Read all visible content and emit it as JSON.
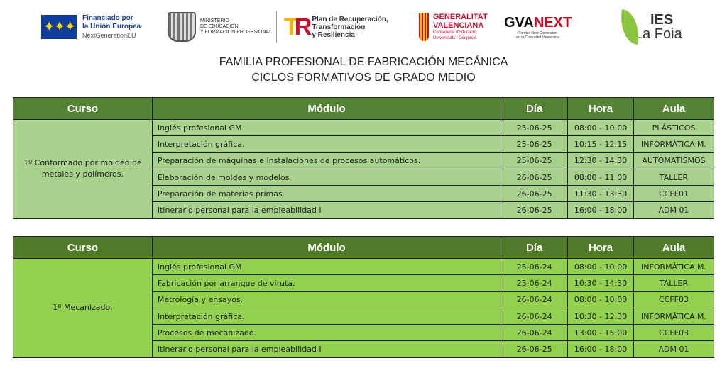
{
  "logos": {
    "eu": {
      "line1": "Financiado por",
      "line2": "la Unión Europea",
      "line3": "NextGenerationEU"
    },
    "ministerio": {
      "line1": "MINISTERIO",
      "line2": "DE EDUCACIÓN",
      "line3": "Y FORMACIÓN PROFESIONAL"
    },
    "plan": {
      "line1": "Plan de Recuperación,",
      "line2": "Transformación",
      "line3": "y Resiliencia"
    },
    "generalitat": {
      "line1": "GENERALITAT",
      "line2": "VALENCIANA",
      "line3": "Conselleria d'Educació,",
      "line4": "Universitats i Ocupació"
    },
    "gvanext": {
      "name_a": "GVA",
      "name_b": "NEXT",
      "line1": "Fondos Next Generation",
      "line2": "en la Comunitat Valenciana"
    },
    "ies": {
      "line1": "IES",
      "line2": "La Foia"
    }
  },
  "title": {
    "line1": "FAMILIA PROFESIONAL DE FABRICACIÓN MECÁNICA",
    "line2": "CICLOS FORMATIVOS DE GRADO MEDIO"
  },
  "headers": [
    "Curso",
    "Módulo",
    "Día",
    "Hora",
    "Aula"
  ],
  "tables": [
    {
      "curso": "1º Conformado por moldeo de metales y polímeros.",
      "rows": [
        [
          "Inglés profesional GM",
          "25-06-25",
          "08:00 - 10:00",
          "PLÁSTICOS"
        ],
        [
          "Interpretación gráfica.",
          "25-06-25",
          "10:15 - 12:15",
          "INFORMÁTICA M."
        ],
        [
          "Preparación de máquinas e instalaciones de procesos automáticos.",
          "25-06-25",
          "12:30 - 14:30",
          "AUTOMATISMOS"
        ],
        [
          "Elaboración de moldes y modelos.",
          "26-06-25",
          "08:00 - 11:00",
          "TALLER"
        ],
        [
          "Preparación de materias primas.",
          "26-06-25",
          "11:30 - 13:30",
          "CCFF01"
        ],
        [
          "Itinerario personal para la empleabilidad I",
          "26-06-25",
          "16:00 - 18:00",
          "ADM 01"
        ]
      ]
    },
    {
      "curso": "1º Mecanizado.",
      "rows": [
        [
          "Inglés profesional GM",
          "25-06-24",
          "08:00 - 10:00",
          "INFORMÁTICA M."
        ],
        [
          "Fabricación por arranque de viruta.",
          "25-06-24",
          "10:30 - 14:30",
          "TALLER"
        ],
        [
          "Metrología y ensayos.",
          "26-06-24",
          "08:00 - 10:00",
          "CCFF03"
        ],
        [
          "Interpretación gráfica.",
          "26-06-24",
          "10:30 - 12:30",
          "INFORMÁTICA M."
        ],
        [
          "Procesos de mecanizado.",
          "26-06-24",
          "13:00 - 15:00",
          "CCFF03"
        ],
        [
          "Itinerario personal para la empleabilidad I",
          "26-06-25",
          "16:00 - 18:00",
          "ADM 01"
        ]
      ]
    }
  ],
  "colors": {
    "header": "#548235",
    "table1_body": "#a9d18e",
    "table2_body": "#92d050"
  }
}
